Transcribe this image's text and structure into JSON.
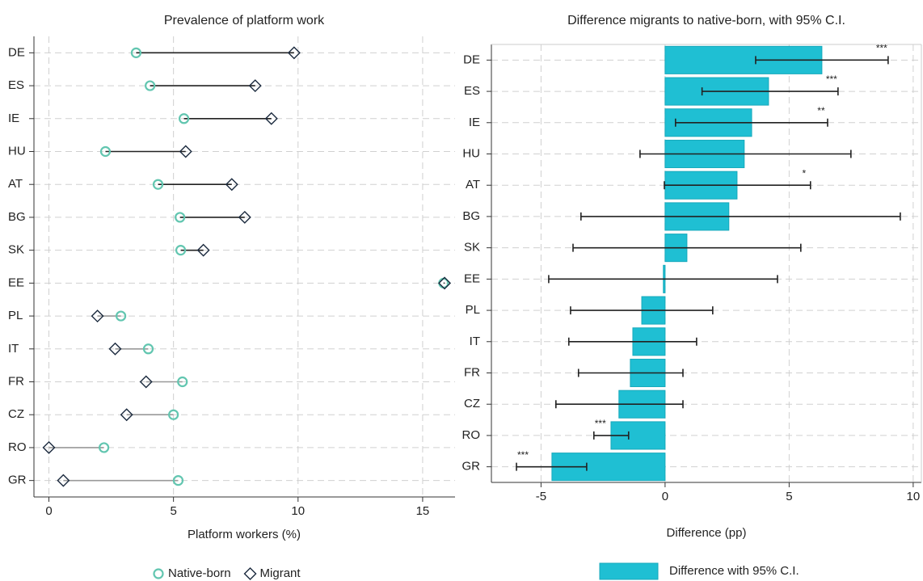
{
  "chart_data": [
    {
      "type": "dumbbell",
      "title": "Prevalence of platform work",
      "x_label": "Platform workers (%)",
      "categories": [
        "DE",
        "ES",
        "IE",
        "HU",
        "AT",
        "BG",
        "SK",
        "EE",
        "PL",
        "IT",
        "FR",
        "CZ",
        "RO",
        "GR"
      ],
      "series": [
        {
          "name": "Native-born",
          "color": "#62c6b0",
          "marker": "circle",
          "values": [
            3.5,
            4.06,
            5.42,
            2.27,
            4.38,
            5.26,
            5.29,
            15.84,
            2.89,
            3.99,
            5.36,
            5.0,
            2.21,
            5.19
          ]
        },
        {
          "name": "Migrant",
          "color": "#1b2a3e",
          "marker": "diamond",
          "values": [
            9.84,
            8.28,
            8.93,
            5.49,
            7.34,
            7.86,
            6.2,
            15.88,
            1.95,
            2.66,
            3.9,
            3.12,
            0,
            0.58
          ]
        }
      ],
      "xlim": [
        -0.6,
        16.3
      ],
      "xticks": [
        0,
        5,
        10,
        15
      ],
      "grid": true
    },
    {
      "type": "hbar",
      "title": "Difference migrants to native-born, with 95% C.I.",
      "x_label": "Difference (pp)",
      "categories": [
        "DE",
        "ES",
        "IE",
        "HU",
        "AT",
        "BG",
        "SK",
        "EE",
        "PL",
        "IT",
        "FR",
        "CZ",
        "RO",
        "GR"
      ],
      "series": [
        {
          "name": "Difference with 95% C.I.",
          "color": "#1fbfd3",
          "values": [
            6.32,
            4.17,
            3.49,
            3.19,
            2.9,
            2.57,
            0.88,
            -0.07,
            -0.94,
            -1.3,
            -1.4,
            -1.86,
            -2.18,
            -4.56
          ],
          "ci_low": [
            3.65,
            1.49,
            0.42,
            -1.01,
            -0.03,
            -3.39,
            -3.71,
            -4.69,
            -3.81,
            -3.88,
            -3.49,
            -4.4,
            -2.87,
            -5.99
          ],
          "ci_high": [
            8.99,
            6.97,
            6.55,
            7.49,
            5.86,
            9.48,
            5.47,
            4.53,
            1.92,
            1.27,
            0.72,
            0.72,
            -1.47,
            -3.16
          ],
          "significance": [
            "***",
            "***",
            "**",
            null,
            "*",
            null,
            null,
            null,
            null,
            null,
            null,
            null,
            "***",
            "***"
          ]
        }
      ],
      "xlim": [
        -7.0,
        10.33
      ],
      "xticks": [
        -5,
        0,
        5,
        10
      ],
      "grid": true
    }
  ]
}
